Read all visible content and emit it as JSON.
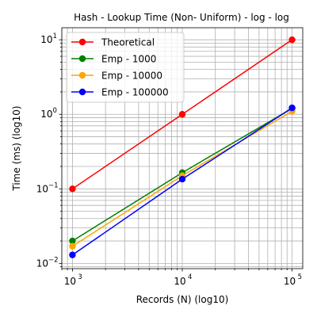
{
  "chart_data": {
    "type": "line",
    "title": "Hash - Lookup Time (Non- Uniform) - log - log",
    "xlabel": "Records (N) (log10)",
    "ylabel": "Time (ms) (log10)",
    "xscale": "log",
    "yscale": "log",
    "xlim": [
      800,
      125000
    ],
    "ylim": [
      0.0085,
      14.5
    ],
    "xticks": [
      {
        "value": 1000,
        "base": "10",
        "exp": "3"
      },
      {
        "value": 10000,
        "base": "10",
        "exp": "4"
      },
      {
        "value": 100000,
        "base": "10",
        "exp": "5"
      }
    ],
    "yticks": [
      {
        "value": 0.01,
        "base": "10",
        "exp": "−2"
      },
      {
        "value": 0.1,
        "base": "10",
        "exp": "−1"
      },
      {
        "value": 1,
        "base": "10",
        "exp": "0"
      },
      {
        "value": 10,
        "base": "10",
        "exp": "1"
      }
    ],
    "grid": true,
    "legend_position": "top-left",
    "x": [
      1000,
      10000,
      100000
    ],
    "series": [
      {
        "name": "Theoretical",
        "color": "#ff0000",
        "values": [
          0.1,
          1.0,
          10.0
        ]
      },
      {
        "name": "Emp - 1000",
        "color": "#008000",
        "values": [
          0.02,
          0.165,
          1.2
        ]
      },
      {
        "name": "Emp - 10000",
        "color": "#ffa500",
        "values": [
          0.017,
          0.15,
          1.1
        ]
      },
      {
        "name": "Emp - 100000",
        "color": "#0000ff",
        "values": [
          0.013,
          0.135,
          1.22
        ]
      }
    ]
  }
}
